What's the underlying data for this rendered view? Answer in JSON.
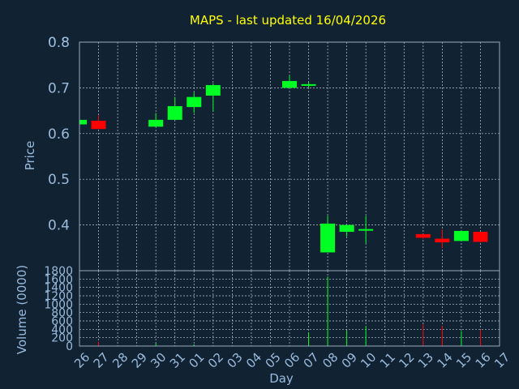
{
  "chart_data": {
    "type": "candlestick",
    "title": "MAPS - last updated 16/04/2026",
    "colors": {
      "background": "#112233",
      "title": "#ffff00",
      "axis_text": "#99bbdd",
      "up": "#00ff22",
      "down": "#ff0000",
      "grid": "#c0c8d0"
    },
    "xlabel": "Day",
    "x_tick_labels": [
      "26",
      "27",
      "28",
      "29",
      "30",
      "31",
      "01",
      "02",
      "03",
      "04",
      "05",
      "06",
      "07",
      "08",
      "09",
      "10",
      "11",
      "12",
      "13",
      "14",
      "15",
      "16",
      "17"
    ],
    "price_panel": {
      "ylabel": "Price",
      "ylim": [
        0.3,
        0.8
      ],
      "y_ticks": [
        0.4,
        0.5,
        0.6,
        0.7,
        0.8
      ],
      "y_tick_labels": [
        "0.4",
        "0.5",
        "0.6",
        "0.7",
        "0.8"
      ],
      "candles": [
        {
          "day": "26",
          "open": 0.62,
          "high": 0.63,
          "low": 0.618,
          "close": 0.63
        },
        {
          "day": "27",
          "open": 0.628,
          "high": 0.64,
          "low": 0.61,
          "close": 0.61
        },
        {
          "day": "30",
          "open": 0.615,
          "high": 0.645,
          "low": 0.615,
          "close": 0.63
        },
        {
          "day": "31",
          "open": 0.63,
          "high": 0.68,
          "low": 0.63,
          "close": 0.66
        },
        {
          "day": "01",
          "open": 0.658,
          "high": 0.69,
          "low": 0.645,
          "close": 0.68
        },
        {
          "day": "02",
          "open": 0.683,
          "high": 0.71,
          "low": 0.648,
          "close": 0.706
        },
        {
          "day": "06",
          "open": 0.7,
          "high": 0.727,
          "low": 0.7,
          "close": 0.715
        },
        {
          "day": "07",
          "open": 0.707,
          "high": 0.713,
          "low": 0.7,
          "close": 0.708
        },
        {
          "day": "08",
          "open": 0.34,
          "high": 0.42,
          "low": 0.34,
          "close": 0.403
        },
        {
          "day": "09",
          "open": 0.385,
          "high": 0.4,
          "low": 0.375,
          "close": 0.4
        },
        {
          "day": "10",
          "open": 0.389,
          "high": 0.42,
          "low": 0.36,
          "close": 0.391
        },
        {
          "day": "13",
          "open": 0.38,
          "high": 0.38,
          "low": 0.37,
          "close": 0.372
        },
        {
          "day": "14",
          "open": 0.37,
          "high": 0.39,
          "low": 0.35,
          "close": 0.362
        },
        {
          "day": "15",
          "open": 0.365,
          "high": 0.387,
          "low": 0.365,
          "close": 0.387
        },
        {
          "day": "16",
          "open": 0.385,
          "high": 0.385,
          "low": 0.362,
          "close": 0.363
        }
      ]
    },
    "volume_panel": {
      "ylabel": "Volume (0000)",
      "ylim": [
        0,
        1800
      ],
      "y_ticks": [
        0,
        200,
        400,
        600,
        800,
        1000,
        1200,
        1400,
        1600,
        1800
      ],
      "y_tick_labels": [
        "0",
        "200",
        "400",
        "600",
        "800",
        "1000",
        "1200",
        "1400",
        "1600",
        "1800"
      ],
      "bars": [
        {
          "day": "26",
          "value": 8,
          "direction": "up"
        },
        {
          "day": "27",
          "value": 100,
          "direction": "down"
        },
        {
          "day": "30",
          "value": 70,
          "direction": "up"
        },
        {
          "day": "31",
          "value": 20,
          "direction": "up"
        },
        {
          "day": "01",
          "value": 40,
          "direction": "up"
        },
        {
          "day": "02",
          "value": 15,
          "direction": "up"
        },
        {
          "day": "06",
          "value": 20,
          "direction": "up"
        },
        {
          "day": "07",
          "value": 320,
          "direction": "up"
        },
        {
          "day": "08",
          "value": 1660,
          "direction": "up"
        },
        {
          "day": "09",
          "value": 380,
          "direction": "up"
        },
        {
          "day": "10",
          "value": 470,
          "direction": "up"
        },
        {
          "day": "13",
          "value": 520,
          "direction": "down"
        },
        {
          "day": "14",
          "value": 480,
          "direction": "down"
        },
        {
          "day": "15",
          "value": 360,
          "direction": "up"
        },
        {
          "day": "16",
          "value": 390,
          "direction": "down"
        }
      ]
    }
  }
}
